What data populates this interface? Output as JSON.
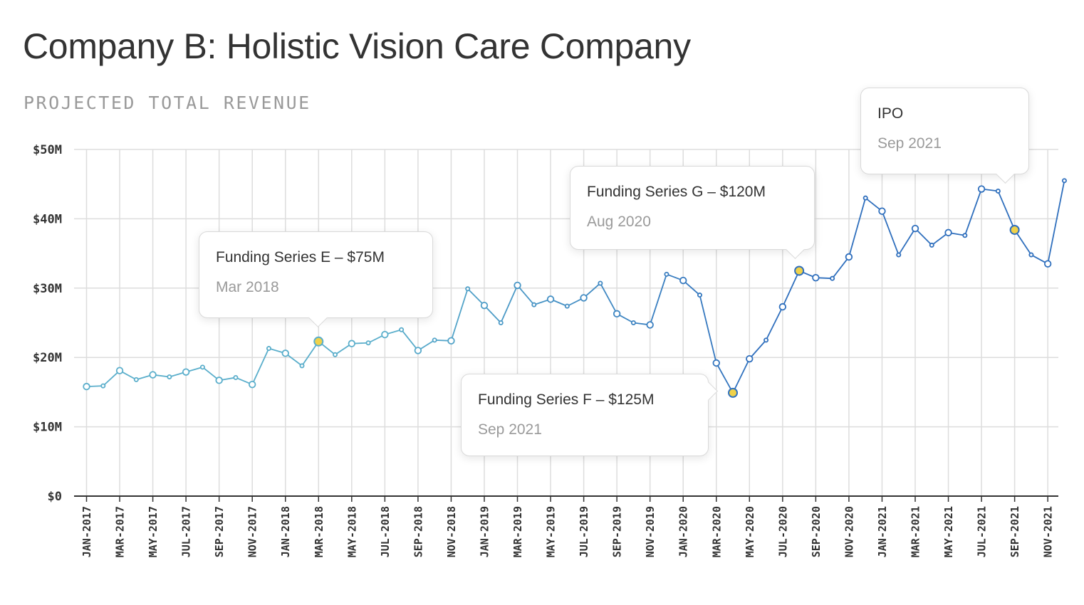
{
  "title": "Company B: Holistic Vision Care Company",
  "subtitle": "PROJECTED TOTAL REVENUE",
  "colors": {
    "line_early": "#5aaecb",
    "line_late": "#2f6fbd",
    "highlight_marker": "#f0d24a",
    "grid": "#dddddd",
    "axis": "#333333"
  },
  "callouts": [
    {
      "id": "series-e",
      "title": "Funding Series E – $75M",
      "date": "Mar 2018"
    },
    {
      "id": "series-g",
      "title": "Funding Series G – $120M",
      "date": "Aug 2020"
    },
    {
      "id": "series-f",
      "title": "Funding Series F – $125M",
      "date": "Sep 2021"
    },
    {
      "id": "ipo",
      "title": "IPO",
      "date": "Sep 2021"
    }
  ],
  "chart_data": {
    "type": "line",
    "title": "Company B: Holistic Vision Care Company",
    "ylabel": "",
    "xlabel": "",
    "ylim": [
      0,
      50
    ],
    "y_unit": "$M",
    "yticks": [
      "$0",
      "$10M",
      "$20M",
      "$30M",
      "$40M",
      "$50M"
    ],
    "xtick_labels": [
      "JAN-2017",
      "MAR-2017",
      "MAY-2017",
      "JUL-2017",
      "SEP-2017",
      "NOV-2017",
      "JAN-2018",
      "MAR-2018",
      "MAY-2018",
      "JUL-2018",
      "SEP-2018",
      "NOV-2018",
      "JAN-2019",
      "MAR-2019",
      "MAY-2019",
      "JUL-2019",
      "SEP-2019",
      "NOV-2019",
      "JAN-2020",
      "MAR-2020",
      "MAY-2020",
      "JUL-2020",
      "SEP-2020",
      "NOV-2020",
      "JAN-2021",
      "MAR-2021",
      "MAY-2021",
      "JUL-2021",
      "SEP-2021",
      "NOV-2021"
    ],
    "grid": true,
    "x": [
      "2017-01",
      "2017-02",
      "2017-03",
      "2017-04",
      "2017-05",
      "2017-06",
      "2017-07",
      "2017-08",
      "2017-09",
      "2017-10",
      "2017-11",
      "2017-12",
      "2018-01",
      "2018-02",
      "2018-03",
      "2018-04",
      "2018-05",
      "2018-06",
      "2018-07",
      "2018-08",
      "2018-09",
      "2018-10",
      "2018-11",
      "2018-12",
      "2019-01",
      "2019-02",
      "2019-03",
      "2019-04",
      "2019-05",
      "2019-06",
      "2019-07",
      "2019-08",
      "2019-09",
      "2019-10",
      "2019-11",
      "2019-12",
      "2020-01",
      "2020-02",
      "2020-03",
      "2020-04",
      "2020-05",
      "2020-06",
      "2020-07",
      "2020-08",
      "2020-09",
      "2020-10",
      "2020-11",
      "2020-12",
      "2021-01",
      "2021-02",
      "2021-03",
      "2021-04",
      "2021-05",
      "2021-06",
      "2021-07",
      "2021-08",
      "2021-09",
      "2021-10",
      "2021-11",
      "2021-12"
    ],
    "series": [
      {
        "values": [
          15.8,
          15.9,
          18.1,
          16.8,
          17.5,
          17.2,
          17.9,
          18.6,
          16.7,
          17.1,
          16.1,
          21.3,
          20.6,
          18.8,
          22.3,
          20.4,
          22.0,
          22.1,
          23.3,
          24.0,
          21.0,
          22.5,
          22.4,
          29.9,
          27.5,
          25.0,
          30.4,
          27.6,
          28.4,
          27.4,
          28.6,
          30.7,
          26.3,
          25.0,
          24.7,
          32.0,
          31.1,
          29.0,
          19.2,
          14.9,
          19.8,
          22.5,
          27.3,
          32.5,
          31.5,
          31.4,
          34.5,
          43.0,
          41.1,
          34.8,
          38.6,
          36.2,
          38.0,
          37.6,
          44.3,
          44.0,
          38.4,
          34.8,
          33.5,
          45.5
        ],
        "highlighted": [
          "2018-03",
          "2020-04",
          "2020-08",
          "2021-09"
        ]
      }
    ]
  }
}
